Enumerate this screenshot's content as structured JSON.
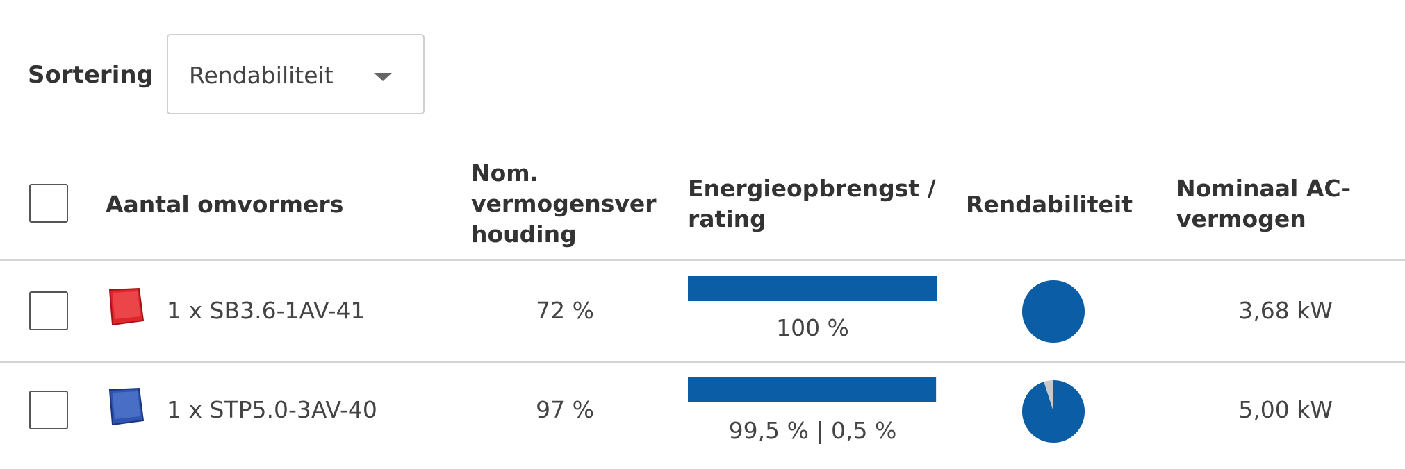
{
  "sort": {
    "label": "Sortering",
    "selected": "Rendabiliteit"
  },
  "table": {
    "headers": {
      "inverters": "Aantal omvormers",
      "ratio_lines": [
        "Nom.",
        "vermogensver",
        "houding"
      ],
      "yield_lines": [
        "Energieopbrengst /",
        "rating"
      ],
      "profitability": "Rendabiliteit",
      "ac_power_lines": [
        "Nominaal AC-",
        "vermogen"
      ]
    },
    "rows": [
      {
        "name": "1 x SB3.6-1AV-41",
        "icon": "red-inverter-icon",
        "icon_color": "#e0262b",
        "ratio": "72 %",
        "bar_fraction": 1.0,
        "bar_label": "100 %",
        "pie_fraction": 1.0,
        "ac_power": "3,68 kW"
      },
      {
        "name": "1 x STP5.0-3AV-40",
        "icon": "blue-inverter-icon",
        "icon_color": "#2f55b3",
        "ratio": "97 %",
        "bar_fraction": 0.995,
        "bar_label": "99,5 % | 0,5 %",
        "pie_fraction": 0.95,
        "ac_power": "5,00 kW"
      }
    ]
  },
  "colors": {
    "accent": "#0b5da6",
    "pie_remainder": "#c9c9c9"
  }
}
